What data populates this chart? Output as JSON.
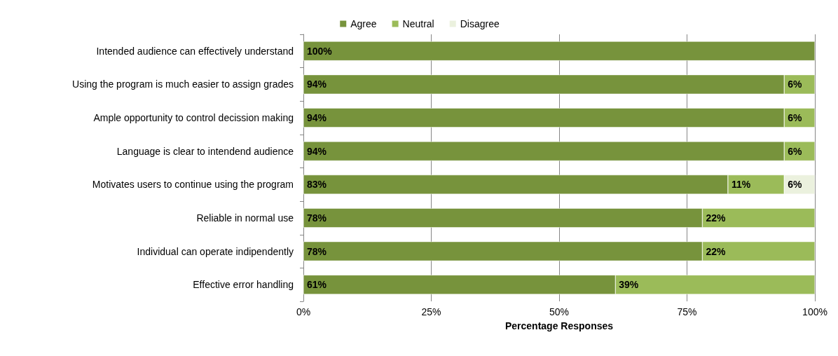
{
  "chart_data": {
    "type": "bar",
    "orientation": "horizontal",
    "stacked": true,
    "xlabel": "Percentage Responses",
    "categories": [
      "Intended audience can effectively understand",
      "Using the program is much easier to assign grades",
      "Ample opportunity to control decission making",
      "Language is clear to intendend audience",
      "Motivates users to continue using the program",
      "Reliable in normal use",
      "Individual can operate indipendently",
      "Effective error handling"
    ],
    "series": [
      {
        "name": "Agree",
        "color": "#77933c",
        "values": [
          100,
          94,
          94,
          94,
          83,
          78,
          78,
          61
        ],
        "value_labels": [
          "100%",
          "94%",
          "94%",
          "94%",
          "83%",
          "78%",
          "78%",
          "61%"
        ]
      },
      {
        "name": "Neutral",
        "color": "#9bbb59",
        "values": [
          null,
          6,
          6,
          6,
          11,
          22,
          22,
          39
        ],
        "value_labels": [
          null,
          "6%",
          "6%",
          "6%",
          "11%",
          "22%",
          "22%",
          "39%"
        ]
      },
      {
        "name": "Disagree",
        "color": "#ebf1de",
        "values": [
          null,
          null,
          null,
          null,
          6,
          null,
          null,
          null
        ],
        "value_labels": [
          null,
          null,
          null,
          null,
          "6%",
          null,
          null,
          null
        ]
      }
    ],
    "xlim": [
      0,
      100
    ],
    "xticks": [
      {
        "value": 0,
        "label": "0%"
      },
      {
        "value": 25,
        "label": "25%"
      },
      {
        "value": 50,
        "label": "50%"
      },
      {
        "value": 75,
        "label": "75%"
      },
      {
        "value": 100,
        "label": "100%"
      }
    ],
    "grid": "x",
    "legend": "top"
  }
}
